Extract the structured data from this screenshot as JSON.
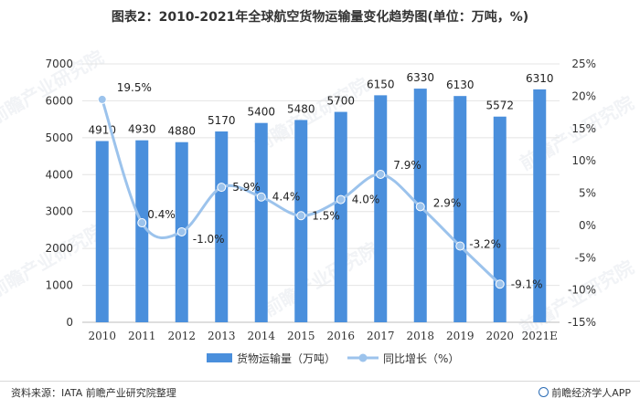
{
  "title": "图表2：2010-2021年全球航空货物运输量变化趋势图(单位：万吨，%)",
  "source": "资料来源：IATA 前瞻产业研究院整理",
  "brand": "前瞻经济学人APP",
  "watermark": "前瞻产业研究院",
  "colors": {
    "bar": "#4a8fdc",
    "line": "#9cc3ec",
    "grid": "#e4e4e4",
    "axis": "#bdbdbd"
  },
  "chart_data": {
    "type": "bar",
    "categories": [
      "2010",
      "2011",
      "2012",
      "2013",
      "2014",
      "2015",
      "2016",
      "2017",
      "2018",
      "2019",
      "2020",
      "2021E"
    ],
    "series": [
      {
        "name": "货物运输量（万吨）",
        "type": "bar",
        "axis": "left",
        "values": [
          4910,
          4930,
          4880,
          5170,
          5400,
          5480,
          5700,
          6150,
          6330,
          6130,
          5572,
          6310
        ],
        "labels": [
          "4910",
          "4930",
          "4880",
          "5170",
          "5400",
          "5480",
          "5700",
          "6150",
          "6330",
          "6130",
          "5572",
          "6310"
        ]
      },
      {
        "name": "同比增长（%）",
        "type": "line",
        "axis": "right",
        "values": [
          19.5,
          0.4,
          -1.0,
          5.9,
          4.4,
          1.5,
          4.0,
          7.9,
          2.9,
          -3.2,
          -9.1,
          null
        ],
        "labels": [
          "19.5%",
          "0.4%",
          "-1.0%",
          "5.9%",
          "4.4%",
          "1.5%",
          "4.0%",
          "7.9%",
          "2.9%",
          "-3.2%",
          "-9.1%",
          ""
        ]
      }
    ],
    "y_left": {
      "min": 0,
      "max": 7000,
      "step": 1000,
      "ticks": [
        "0",
        "1000",
        "2000",
        "3000",
        "4000",
        "5000",
        "6000",
        "7000"
      ]
    },
    "y_right": {
      "min": -15,
      "max": 25,
      "step": 5,
      "ticks": [
        "-15%",
        "-10%",
        "-5%",
        "0%",
        "5%",
        "10%",
        "15%",
        "20%",
        "25%"
      ]
    },
    "grid": true,
    "legend": "bottom"
  }
}
